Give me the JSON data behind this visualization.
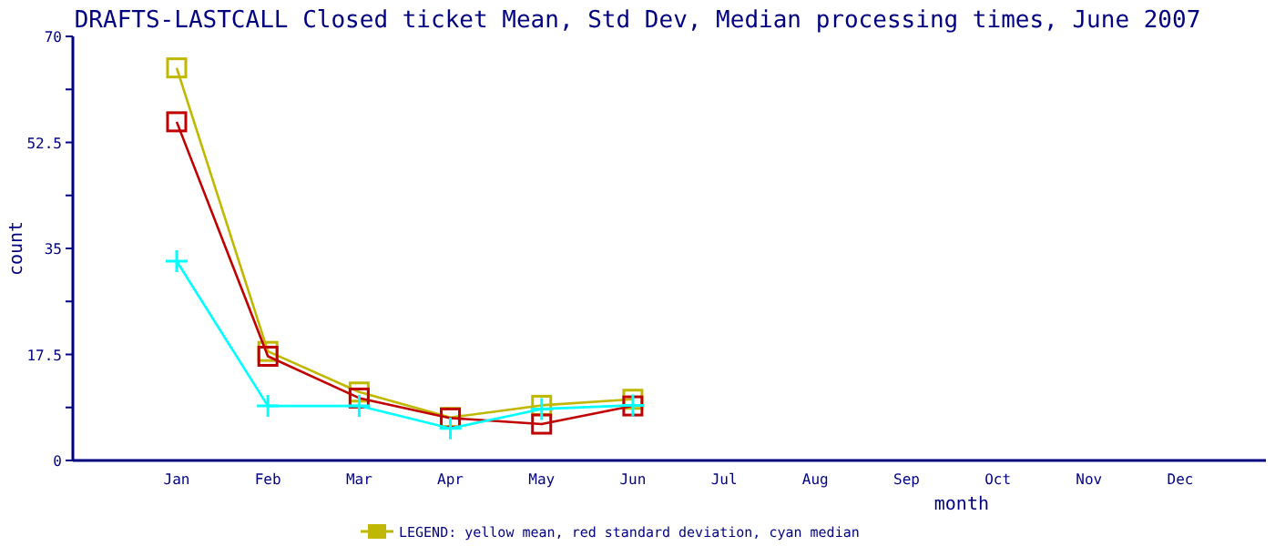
{
  "chart_data": {
    "type": "line",
    "title": "DRAFTS-LASTCALL Closed ticket Mean, Std Dev, Median processing times, June 2007",
    "xlabel": "month",
    "ylabel": "count",
    "annotations": [
      "LEGEND: yellow mean, red standard deviation, cyan median"
    ],
    "categories": [
      "Jan",
      "Feb",
      "Mar",
      "Apr",
      "May",
      "Jun",
      "Jul",
      "Aug",
      "Sep",
      "Oct",
      "Nov",
      "Dec"
    ],
    "ylim": [
      0,
      70
    ],
    "yticks": [
      0,
      {
        "value": 8.75,
        "label": null
      },
      17.5,
      {
        "value": 26.25,
        "label": null
      },
      35,
      {
        "value": 43.75,
        "label": null
      },
      52.5,
      {
        "value": 61.25,
        "label": null
      },
      70
    ],
    "series": [
      {
        "color": "#c0b800",
        "marker": "square",
        "values": [
          64.8,
          18.0,
          11.3,
          7.1,
          9.1,
          10.1,
          null,
          null,
          null,
          null,
          null,
          null
        ]
      },
      {
        "color": "#c00000",
        "marker": "square",
        "values": [
          55.9,
          17.2,
          10.3,
          7.0,
          6.0,
          9.0,
          null,
          null,
          null,
          null,
          null,
          null
        ]
      },
      {
        "color": "#00ffff",
        "marker": "cross",
        "values": [
          32.9,
          9.0,
          9.0,
          5.3,
          8.5,
          9.1,
          null,
          null,
          null,
          null,
          null,
          null
        ]
      }
    ]
  }
}
